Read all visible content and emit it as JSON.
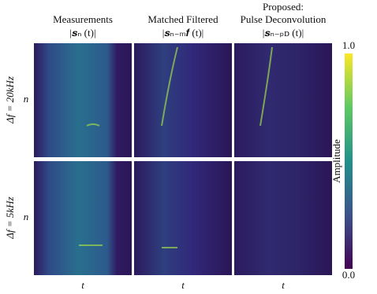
{
  "figure": {
    "columns": [
      {
        "title": [
          "Measurements"
        ],
        "formula": "|𝒔ₙ (t)|",
        "x_label": "t"
      },
      {
        "title": [
          "Matched Filtered"
        ],
        "formula": "|𝒔ₙ₋ₘ𝒇 (t)|",
        "x_label": "t"
      },
      {
        "title": [
          "Proposed:",
          "Pulse Deconvolution"
        ],
        "formula": "|𝒔ₙ₋ₚᴅ (t)|",
        "x_label": "t"
      }
    ],
    "rows": [
      {
        "label": "Δf = 20kHz",
        "y_label": "n"
      },
      {
        "label": "Δf = 5kHz",
        "y_label": "n"
      }
    ],
    "colorbar": {
      "label": "Amplitude",
      "range": [
        0,
        1
      ],
      "ticks": [
        {
          "value": 1,
          "label": "1.0"
        },
        {
          "value": 0,
          "label": "0.0"
        }
      ]
    }
  }
}
